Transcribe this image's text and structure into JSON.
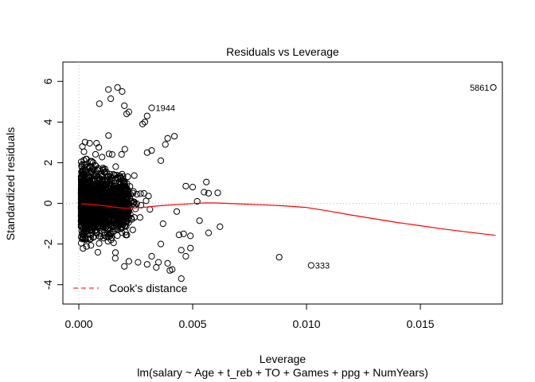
{
  "chart_data": {
    "type": "scatter",
    "title": "Residuals vs Leverage",
    "xlabel": "Leverage",
    "subtitle": "lm(salary ~ Age + t_reb + TO + Games + ppg + NumYears)",
    "ylabel": "Standardized residuals",
    "xlim": [
      -0.0007,
      0.0186
    ],
    "ylim": [
      -4.95,
      6.95
    ],
    "x_ticks": [
      0.0,
      0.005,
      0.01,
      0.015
    ],
    "x_tick_labels": [
      "0.000",
      "0.005",
      "0.010",
      "0.015"
    ],
    "y_ticks": [
      -4,
      -2,
      0,
      2,
      4,
      6
    ],
    "y_tick_labels": [
      "-4",
      "-2",
      "0",
      "2",
      "4",
      "6"
    ],
    "reference_lines": {
      "h": 0,
      "v": 0,
      "style": "dotted",
      "color": "#bbbbbb"
    },
    "legend": {
      "position": "bottom-left",
      "entries": [
        {
          "label": "Cook's distance",
          "color": "#ff3030",
          "style": "dashed"
        }
      ]
    },
    "smooth_line": {
      "color": "#ff0000",
      "x": [
        0.0001,
        0.0005,
        0.001,
        0.0015,
        0.002,
        0.0025,
        0.003,
        0.0035,
        0.004,
        0.0045,
        0.005,
        0.0055,
        0.006,
        0.007,
        0.008,
        0.009,
        0.01,
        0.011,
        0.012,
        0.013,
        0.014,
        0.015,
        0.016,
        0.017,
        0.0183
      ],
      "y": [
        -0.02,
        -0.04,
        -0.1,
        -0.18,
        -0.24,
        -0.22,
        -0.18,
        -0.12,
        -0.08,
        -0.05,
        -0.01,
        0.02,
        0.02,
        -0.02,
        -0.07,
        -0.12,
        -0.2,
        -0.38,
        -0.58,
        -0.76,
        -0.94,
        -1.1,
        -1.26,
        -1.4,
        -1.57
      ]
    },
    "point_labels": [
      {
        "label": "5861",
        "x": 0.0182,
        "y": 5.7,
        "side": "left"
      },
      {
        "label": "1944",
        "x": 0.0032,
        "y": 4.7,
        "side": "right"
      },
      {
        "label": "333",
        "x": 0.0102,
        "y": -3.05,
        "side": "right"
      }
    ],
    "outlier_points": [
      [
        0.0182,
        5.7
      ],
      [
        0.0032,
        4.7
      ],
      [
        0.0102,
        -3.05
      ],
      [
        0.0088,
        -2.65
      ],
      [
        0.0062,
        -1.15
      ],
      [
        0.0057,
        -1.45
      ],
      [
        0.0055,
        0.55
      ],
      [
        0.0057,
        0.5
      ],
      [
        0.0061,
        0.52
      ],
      [
        0.0056,
        1.05
      ],
      [
        0.0052,
        0.1
      ],
      [
        0.0053,
        -0.85
      ],
      [
        0.005,
        0.8
      ],
      [
        0.0047,
        0.85
      ],
      [
        0.0049,
        -1.6
      ],
      [
        0.0047,
        -2.6
      ],
      [
        0.0049,
        -2.2
      ],
      [
        0.0045,
        -2.3
      ],
      [
        0.0045,
        -3.7
      ],
      [
        0.0044,
        -1.55
      ],
      [
        0.0046,
        -1.5
      ],
      [
        0.0043,
        -0.4
      ],
      [
        0.0041,
        -3.25
      ],
      [
        0.0039,
        -2.95
      ],
      [
        0.004,
        -3.3
      ],
      [
        0.0042,
        3.3
      ],
      [
        0.0039,
        3.2
      ],
      [
        0.0038,
        2.9
      ],
      [
        0.0036,
        2.1
      ],
      [
        0.0036,
        -2.0
      ],
      [
        0.0035,
        -2.9
      ],
      [
        0.0034,
        -3.15
      ],
      [
        0.0037,
        -1.0
      ],
      [
        0.003,
        4.3
      ],
      [
        0.0029,
        4.0
      ],
      [
        0.0028,
        3.9
      ],
      [
        0.0022,
        4.5
      ],
      [
        0.0021,
        4.4
      ],
      [
        0.0019,
        5.5
      ],
      [
        0.0017,
        5.7
      ],
      [
        0.0013,
        5.6
      ],
      [
        0.0014,
        5.15
      ],
      [
        0.0009,
        4.9
      ],
      [
        0.002,
        4.8
      ],
      [
        0.0016,
        -2.7
      ],
      [
        0.0022,
        -2.85
      ],
      [
        0.0026,
        -2.9
      ],
      [
        0.003,
        -3.0
      ],
      [
        0.0032,
        -2.6
      ],
      [
        0.002,
        -3.1
      ],
      [
        0.003,
        2.5
      ],
      [
        0.0032,
        2.6
      ]
    ]
  }
}
